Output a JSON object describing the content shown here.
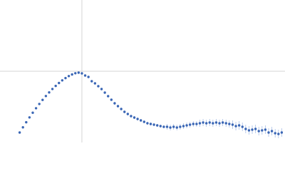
{
  "chart_data": {
    "type": "scatter",
    "x": [
      0.24,
      0.28,
      0.32,
      0.36,
      0.4,
      0.44,
      0.48,
      0.52,
      0.56,
      0.6,
      0.64,
      0.68,
      0.72,
      0.76,
      0.8,
      0.84,
      0.88,
      0.92,
      0.96,
      1.0,
      1.04,
      1.08,
      1.12,
      1.16,
      1.2,
      1.24,
      1.28,
      1.32,
      1.36,
      1.4,
      1.44,
      1.48,
      1.52,
      1.56,
      1.6,
      1.64,
      1.68,
      1.72,
      1.76,
      1.8,
      1.84,
      1.88,
      1.92,
      1.96,
      2.0,
      2.04,
      2.08,
      2.12,
      2.16,
      2.2,
      2.24,
      2.28,
      2.32,
      2.36,
      2.4,
      2.44,
      2.48,
      2.52,
      2.56,
      2.6,
      2.64,
      2.68,
      2.72,
      2.76,
      2.8,
      2.84,
      2.88,
      2.92,
      2.96,
      3.0,
      3.04,
      3.08,
      3.12,
      3.16,
      3.2,
      3.24,
      3.28,
      3.32,
      3.36,
      3.4,
      3.44
    ],
    "values": [
      0.14,
      0.213,
      0.284,
      0.352,
      0.418,
      0.481,
      0.541,
      0.598,
      0.652,
      0.703,
      0.751,
      0.794,
      0.835,
      0.872,
      0.904,
      0.932,
      0.955,
      0.972,
      0.98,
      0.97,
      0.94,
      0.92,
      0.86,
      0.83,
      0.79,
      0.75,
      0.7,
      0.65,
      0.6,
      0.55,
      0.51,
      0.47,
      0.43,
      0.4,
      0.37,
      0.35,
      0.33,
      0.31,
      0.29,
      0.27,
      0.26,
      0.25,
      0.24,
      0.23,
      0.22,
      0.22,
      0.21,
      0.22,
      0.21,
      0.22,
      0.23,
      0.24,
      0.25,
      0.26,
      0.26,
      0.27,
      0.28,
      0.27,
      0.28,
      0.27,
      0.28,
      0.27,
      0.28,
      0.27,
      0.26,
      0.25,
      0.23,
      0.24,
      0.22,
      0.19,
      0.17,
      0.18,
      0.19,
      0.16,
      0.17,
      0.18,
      0.14,
      0.16,
      0.13,
      0.12,
      0.14
    ],
    "errors": [
      0.01,
      0.01,
      0.01,
      0.01,
      0.01,
      0.01,
      0.01,
      0.01,
      0.01,
      0.01,
      0.01,
      0.01,
      0.01,
      0.01,
      0.01,
      0.01,
      0.01,
      0.01,
      0.01,
      0.01,
      0.01,
      0.01,
      0.01,
      0.01,
      0.01,
      0.01,
      0.01,
      0.01,
      0.01,
      0.02,
      0.02,
      0.02,
      0.02,
      0.02,
      0.02,
      0.02,
      0.02,
      0.02,
      0.02,
      0.02,
      0.02,
      0.02,
      0.02,
      0.02,
      0.02,
      0.04,
      0.04,
      0.04,
      0.04,
      0.04,
      0.04,
      0.04,
      0.04,
      0.04,
      0.04,
      0.05,
      0.05,
      0.05,
      0.05,
      0.05,
      0.05,
      0.05,
      0.05,
      0.05,
      0.05,
      0.06,
      0.06,
      0.06,
      0.06,
      0.06,
      0.06,
      0.06,
      0.06,
      0.06,
      0.06,
      0.06,
      0.06,
      0.06,
      0.06,
      0.06,
      0.06
    ],
    "color": "#3a66b5",
    "error_color": "#a9bfe6",
    "xlim": [
      0,
      3.48
    ],
    "ylim": [
      0,
      2
    ],
    "xticks": [
      1
    ],
    "yticks": [
      1
    ],
    "grid": true
  }
}
